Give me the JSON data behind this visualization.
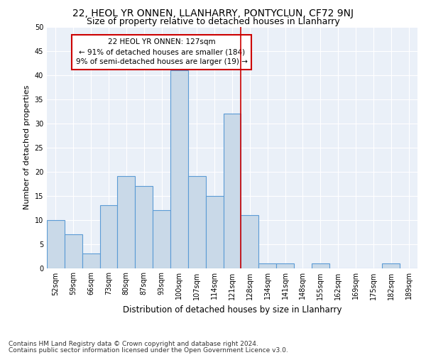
{
  "title": "22, HEOL YR ONNEN, LLANHARRY, PONTYCLUN, CF72 9NJ",
  "subtitle": "Size of property relative to detached houses in Llanharry",
  "xlabel": "Distribution of detached houses by size in Llanharry",
  "ylabel": "Number of detached properties",
  "footnote1": "Contains HM Land Registry data © Crown copyright and database right 2024.",
  "footnote2": "Contains public sector information licensed under the Open Government Licence v3.0.",
  "bar_labels": [
    "52sqm",
    "59sqm",
    "66sqm",
    "73sqm",
    "80sqm",
    "87sqm",
    "93sqm",
    "100sqm",
    "107sqm",
    "114sqm",
    "121sqm",
    "128sqm",
    "134sqm",
    "141sqm",
    "148sqm",
    "155sqm",
    "162sqm",
    "169sqm",
    "175sqm",
    "182sqm",
    "189sqm"
  ],
  "bar_values": [
    10,
    7,
    3,
    13,
    19,
    17,
    12,
    41,
    19,
    15,
    32,
    11,
    1,
    1,
    0,
    1,
    0,
    0,
    0,
    1,
    0
  ],
  "bar_color": "#c9d9e8",
  "bar_edge_color": "#5b9bd5",
  "annotation_text": "22 HEOL YR ONNEN: 127sqm\n← 91% of detached houses are smaller (184)\n9% of semi-detached houses are larger (19) →",
  "annotation_box_edge_color": "#cc0000",
  "vline_color": "#cc0000",
  "vline_x_index": 11,
  "background_color": "#eaf0f8",
  "ylim": [
    0,
    50
  ],
  "yticks": [
    0,
    5,
    10,
    15,
    20,
    25,
    30,
    35,
    40,
    45,
    50
  ],
  "title_fontsize": 10,
  "subtitle_fontsize": 9,
  "xlabel_fontsize": 8.5,
  "ylabel_fontsize": 8,
  "tick_fontsize": 7,
  "annotation_fontsize": 7.5,
  "footnote_fontsize": 6.5
}
